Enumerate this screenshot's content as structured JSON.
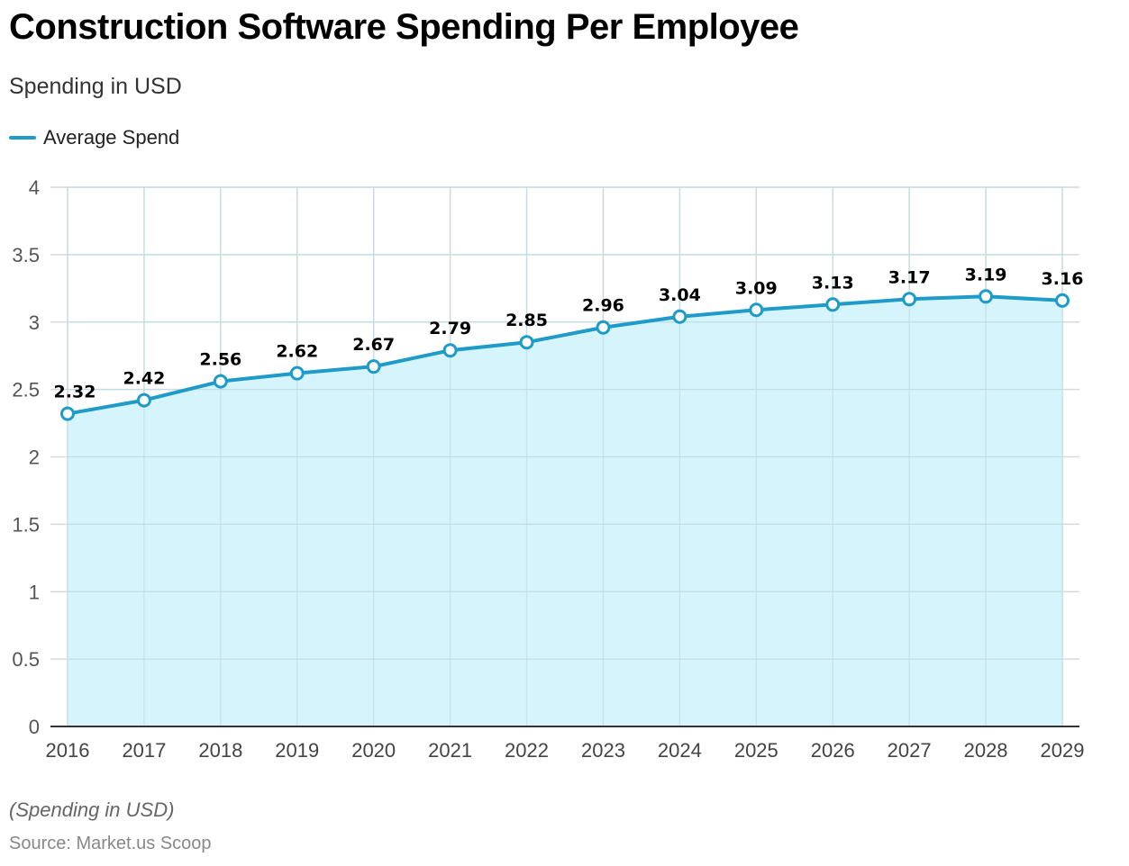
{
  "title": "Construction Software Spending Per Employee",
  "subtitle": "Spending in USD",
  "note": "(Spending in USD)",
  "source": "Source: Market.us Scoop",
  "colors": {
    "line": "#1f9bc9",
    "fill": "#d4f3fb",
    "grid": "#d9d9d9",
    "axis": "#333333"
  },
  "chart_data": {
    "type": "area",
    "categories": [
      "2016",
      "2017",
      "2018",
      "2019",
      "2020",
      "2021",
      "2022",
      "2023",
      "2024",
      "2025",
      "2026",
      "2027",
      "2028",
      "2029"
    ],
    "series": [
      {
        "name": "Average Spend",
        "values": [
          2.32,
          2.42,
          2.56,
          2.62,
          2.67,
          2.79,
          2.85,
          2.96,
          3.04,
          3.09,
          3.13,
          3.17,
          3.19,
          3.16
        ]
      }
    ],
    "data_labels": [
      "2.32",
      "2.42",
      "2.56",
      "2.62",
      "2.67",
      "2.79",
      "2.85",
      "2.96",
      "3.04",
      "3.09",
      "3.13",
      "3.17",
      "3.19",
      "3.16"
    ],
    "yticks": [
      "0",
      "0.5",
      "1",
      "1.5",
      "2",
      "2.5",
      "3",
      "3.5",
      "4"
    ],
    "ylim": [
      0,
      4
    ],
    "grid": true,
    "legend_position": "top-left"
  }
}
